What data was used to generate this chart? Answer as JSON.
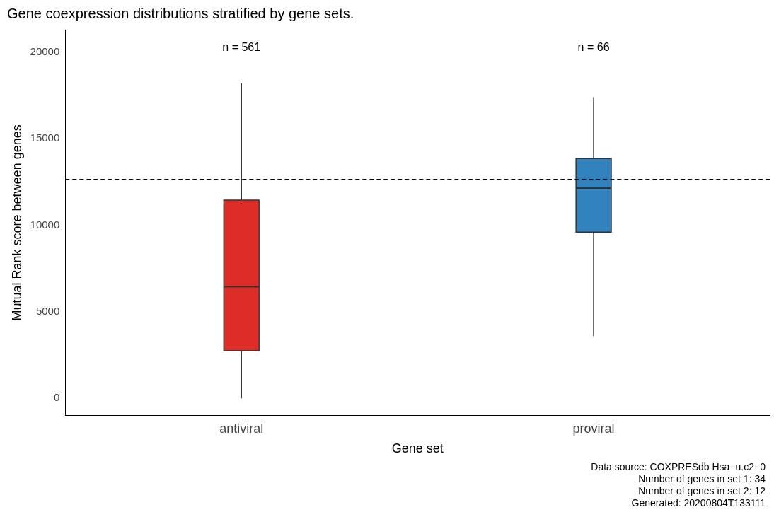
{
  "chart_data": {
    "type": "box",
    "title": "Gene coexpression distributions stratified by gene sets.",
    "xlabel": "Gene set",
    "ylabel": "Mutual Rank score between genes",
    "categories": [
      "antiviral",
      "proviral"
    ],
    "boxes": [
      {
        "low": 0,
        "q1": 2750,
        "median": 6450,
        "q3": 11450,
        "high": 18200
      },
      {
        "low": 3600,
        "q1": 9600,
        "median": 12150,
        "q3": 13850,
        "high": 17400
      }
    ],
    "colors": [
      "#de2d26",
      "#3182bd"
    ],
    "ylim": [
      -1000,
      21300
    ],
    "yticks": [
      0,
      5000,
      10000,
      15000,
      20000
    ],
    "grid": false,
    "legend": false,
    "ref_lines": [
      {
        "axis": "y",
        "value": 12650,
        "line_style": "dashed",
        "color": "#000000"
      }
    ],
    "annotations": [
      "n = 561",
      "n = 66",
      "Data source: COXPRESdb Hsa−u.c2−0",
      "Number of genes in set 1: 34",
      "Number of genes in set 2: 12",
      "Generated: 20200804T133111"
    ]
  }
}
